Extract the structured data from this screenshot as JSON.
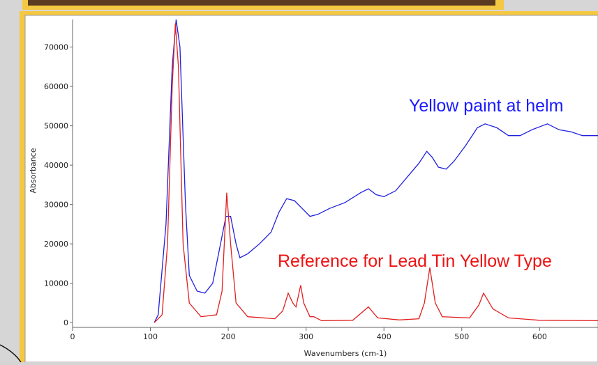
{
  "chart_data": {
    "type": "line",
    "xlabel": "Wavenumbers (cm-1)",
    "ylabel": "Absorbance",
    "xlim": [
      0,
      675
    ],
    "ylim": [
      -1200,
      77000
    ],
    "xticks": [
      0,
      100,
      200,
      300,
      400,
      500,
      600
    ],
    "yticks": [
      0,
      10000,
      20000,
      30000,
      40000,
      50000,
      60000,
      70000
    ],
    "annotations": [
      {
        "text": "Yellow paint at helm",
        "color": "#1a1aff",
        "series": 0
      },
      {
        "text": "Reference for Lead Tin Yellow Type",
        "color": "#ee1111",
        "series": 1
      }
    ],
    "series": [
      {
        "color": "#2020e0",
        "x": [
          105,
          110,
          120,
          128,
          133,
          138,
          145,
          150,
          160,
          170,
          180,
          190,
          197,
          203,
          210,
          215,
          225,
          240,
          255,
          265,
          275,
          285,
          295,
          305,
          315,
          330,
          350,
          370,
          380,
          390,
          400,
          415,
          430,
          445,
          455,
          462,
          470,
          480,
          490,
          505,
          520,
          530,
          545,
          560,
          575,
          590,
          610,
          625,
          640,
          655,
          675
        ],
        "values": [
          0,
          2000,
          25000,
          65000,
          77000,
          70000,
          30000,
          12000,
          8000,
          7500,
          10000,
          20000,
          27000,
          27000,
          20000,
          16500,
          17500,
          20000,
          23000,
          28000,
          31500,
          31000,
          29000,
          27000,
          27500,
          29000,
          30500,
          33000,
          34000,
          32500,
          32000,
          33500,
          37000,
          40500,
          43500,
          42000,
          39500,
          39000,
          41000,
          45000,
          49500,
          50500,
          49500,
          47500,
          47500,
          49000,
          50500,
          49000,
          48500,
          47500,
          47500
        ]
      },
      {
        "color": "#e02020",
        "x": [
          105,
          115,
          122,
          128,
          132,
          136,
          142,
          150,
          165,
          185,
          192,
          198,
          203,
          210,
          225,
          260,
          270,
          277,
          283,
          287,
          293,
          297,
          305,
          310,
          320,
          360,
          380,
          392,
          420,
          445,
          452,
          459,
          466,
          475,
          510,
          522,
          528,
          540,
          560,
          600,
          675
        ],
        "values": [
          0,
          2000,
          20000,
          60000,
          76000,
          65000,
          20000,
          5000,
          1500,
          2000,
          8000,
          33000,
          20000,
          5000,
          1500,
          1000,
          3000,
          7500,
          5000,
          4000,
          9500,
          5000,
          1500,
          1500,
          500,
          600,
          4000,
          1200,
          700,
          1000,
          5000,
          14000,
          5000,
          1500,
          1200,
          4500,
          7500,
          3500,
          1200,
          600,
          500
        ]
      }
    ]
  }
}
